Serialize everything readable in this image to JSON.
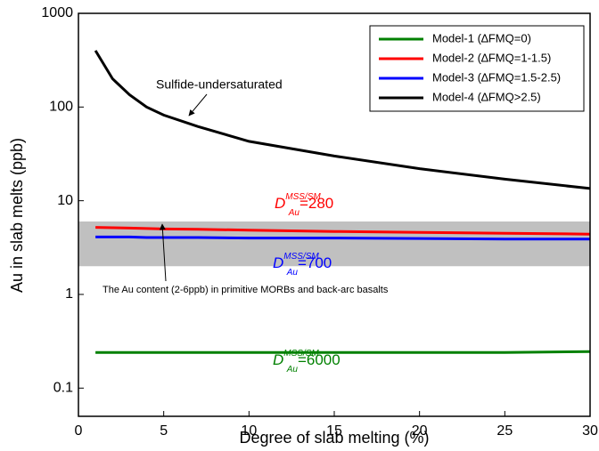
{
  "chart_data": {
    "type": "line",
    "x_label": "Degree of slab melting (%)",
    "y_label": "Au in slab melts (ppb)",
    "log_y": true,
    "xlim": [
      0,
      30
    ],
    "xticks": [
      0,
      5,
      10,
      15,
      20,
      25,
      30
    ],
    "ylim": [
      0.05,
      1000
    ],
    "yticks": [
      0.1,
      1,
      10,
      100,
      1000
    ],
    "band": {
      "range": [
        2,
        6
      ],
      "color": "#c0c0c0",
      "label": "The Au content (2-6ppb) in primitive MORBs and back-arc basalts"
    },
    "x": [
      1,
      2,
      3,
      4,
      5,
      7,
      10,
      15,
      20,
      25,
      30
    ],
    "series": [
      {
        "name": "Model-1 (∆FMQ=0)",
        "color": "#008000",
        "values": [
          0.24,
          0.24,
          0.24,
          0.24,
          0.24,
          0.24,
          0.24,
          0.24,
          0.24,
          0.24,
          0.245
        ]
      },
      {
        "name": "Model-2 (∆FMQ=1-1.5)",
        "color": "#ff0000",
        "values": [
          5.2,
          5.15,
          5.1,
          5.05,
          5.0,
          4.95,
          4.85,
          4.7,
          4.6,
          4.5,
          4.4
        ]
      },
      {
        "name": "Model-3 (∆FMQ=1.5-2.5)",
        "color": "#0000ff",
        "values": [
          4.1,
          4.1,
          4.1,
          4.05,
          4.05,
          4.05,
          4.0,
          4.0,
          3.95,
          3.9,
          3.9
        ]
      },
      {
        "name": "Model-4 (∆FMQ>2.5)",
        "color": "#000000",
        "values": [
          400,
          200,
          135,
          100,
          82,
          62,
          43,
          30,
          22,
          17,
          13.5
        ]
      }
    ],
    "legend_position": "upper right",
    "annotations": [
      {
        "text": "Sulfide-undersaturated"
      },
      {
        "symbol": "D",
        "sup": "MSS/SM",
        "sub": "Au",
        "text": "=280",
        "color": "#ff0000"
      },
      {
        "symbol": "D",
        "sup": "MSS/SM",
        "sub": "Au",
        "text": "=700",
        "color": "#0000ff"
      },
      {
        "symbol": "D",
        "sup": "MSS/SM",
        "sub": "Au",
        "text": "=6000",
        "color": "#008000"
      }
    ]
  }
}
